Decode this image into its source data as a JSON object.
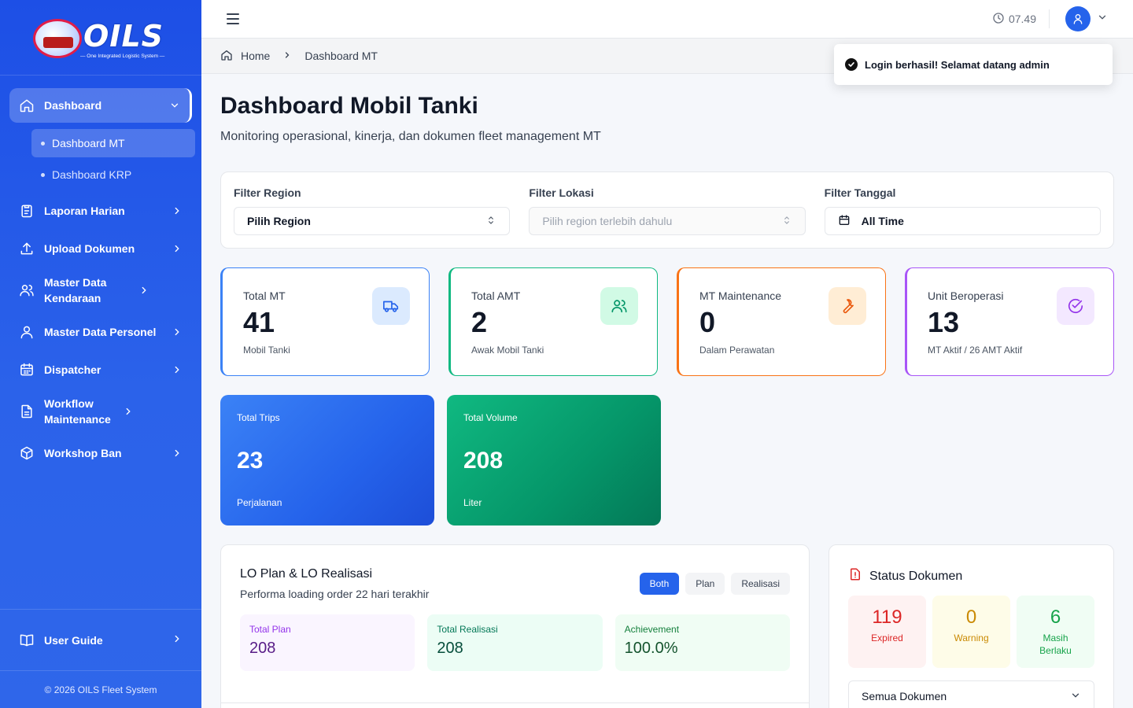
{
  "brand": {
    "name": "OILS",
    "tagline": "— One Integrated Logistic System —"
  },
  "sidebar": {
    "items": [
      {
        "label": "Dashboard",
        "icon": "home-icon"
      },
      {
        "label": "Laporan Harian",
        "icon": "clipboard-icon"
      },
      {
        "label": "Upload Dokumen",
        "icon": "upload-icon"
      },
      {
        "label": "Master Data Kendaraan",
        "icon": "users-icon"
      },
      {
        "label": "Master Data Personel",
        "icon": "user-icon"
      },
      {
        "label": "Dispatcher",
        "icon": "calendar-icon"
      },
      {
        "label": "Workflow Maintenance",
        "icon": "document-icon"
      },
      {
        "label": "Workshop Ban",
        "icon": "cube-icon"
      }
    ],
    "dashboard_sub": [
      {
        "label": "Dashboard MT"
      },
      {
        "label": "Dashboard KRP"
      }
    ],
    "user_guide": "User Guide",
    "copyright": "© 2026 OILS Fleet System"
  },
  "topbar": {
    "time": "07.49"
  },
  "breadcrumb": {
    "home": "Home",
    "current": "Dashboard MT"
  },
  "toast": {
    "message": "Login berhasil! Selamat datang admin"
  },
  "page": {
    "title": "Dashboard Mobil Tanki",
    "subtitle": "Monitoring operasional, kinerja, dan dokumen fleet management MT"
  },
  "filters": {
    "region": {
      "label": "Filter Region",
      "value": "Pilih Region"
    },
    "lokasi": {
      "label": "Filter Lokasi",
      "value": "Pilih region terlebih dahulu"
    },
    "tanggal": {
      "label": "Filter Tanggal",
      "value": "All Time"
    }
  },
  "stats": [
    {
      "title": "Total MT",
      "value": "41",
      "desc": "Mobil Tanki",
      "color": "#3b82f6",
      "icon": "truck-icon"
    },
    {
      "title": "Total AMT",
      "value": "2",
      "desc": "Awak Mobil Tanki",
      "color": "#10b981",
      "icon": "users-icon"
    },
    {
      "title": "MT Maintenance",
      "value": "0",
      "desc": "Dalam Perawatan",
      "color": "#f97316",
      "icon": "wrench-icon"
    },
    {
      "title": "Unit Beroperasi",
      "value": "13",
      "desc": "MT Aktif / 26 AMT Aktif",
      "color": "#a855f7",
      "icon": "check-circle-icon"
    }
  ],
  "big_stats": [
    {
      "title": "Total Trips",
      "value": "23",
      "desc": "Perjalanan"
    },
    {
      "title": "Total Volume",
      "value": "208",
      "desc": "Liter"
    }
  ],
  "lo": {
    "title": "LO Plan & LO Realisasi",
    "subtitle": "Performa loading order 22 hari terakhir",
    "toggles": [
      "Both",
      "Plan",
      "Realisasi"
    ],
    "active_toggle": "Both",
    "plan_label": "Total Plan",
    "plan_value": "208",
    "real_label": "Total Realisasi",
    "real_value": "208",
    "ach_label": "Achievement",
    "ach_value": "100.0%"
  },
  "docs": {
    "title": "Status Dokumen",
    "expired_value": "119",
    "expired_label": "Expired",
    "warning_value": "0",
    "warning_label": "Warning",
    "valid_value": "6",
    "valid_label": "Masih Berlaku",
    "select_value": "Semua Dokumen"
  }
}
